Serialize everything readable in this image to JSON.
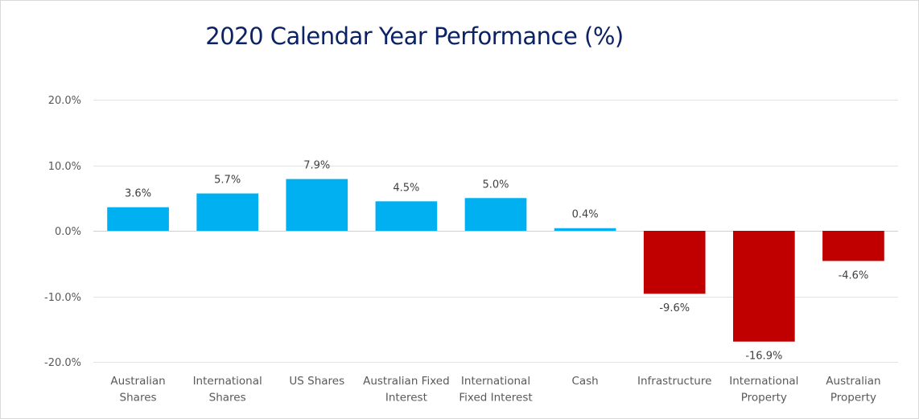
{
  "chart_data": {
    "type": "bar",
    "title": "2020 Calendar Year Performance (%)",
    "xlabel": "",
    "ylabel": "",
    "ylim": [
      -20,
      20
    ],
    "yticks": [
      20,
      10,
      0,
      -10,
      -20
    ],
    "ytick_labels": [
      "20.0%",
      "10.0%",
      "0.0%",
      "-10.0%",
      "-20.0%"
    ],
    "grid": true,
    "legend": "none",
    "categories": [
      [
        "Australian",
        "Shares"
      ],
      [
        "International",
        "Shares"
      ],
      [
        "US Shares"
      ],
      [
        "Australian Fixed",
        "Interest"
      ],
      [
        "International",
        "Fixed Interest"
      ],
      [
        "Cash"
      ],
      [
        "Infrastructure"
      ],
      [
        "International",
        "Property"
      ],
      [
        "Australian",
        "Property"
      ]
    ],
    "values": [
      3.6,
      5.7,
      7.9,
      4.5,
      5.0,
      0.4,
      -9.6,
      -16.9,
      -4.6
    ],
    "data_labels": [
      "3.6%",
      "5.7%",
      "7.9%",
      "4.5%",
      "5.0%",
      "0.4%",
      "-9.6%",
      "-16.9%",
      "-4.6%"
    ],
    "colors": {
      "positive": "#00b0f0",
      "negative": "#c00000",
      "grid": "#e3e3e3",
      "title": "#0b2265"
    }
  }
}
